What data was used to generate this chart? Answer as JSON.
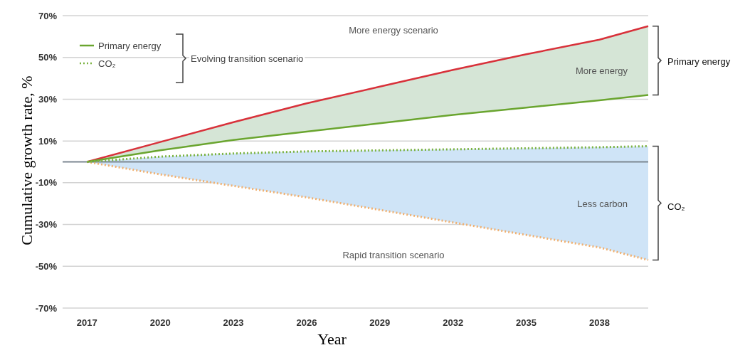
{
  "chart_data": {
    "type": "line",
    "xlabel": "Year",
    "ylabel": "Cumulative growth rate, %",
    "x": [
      2017,
      2020,
      2023,
      2026,
      2029,
      2032,
      2035,
      2038,
      2040
    ],
    "series": [
      {
        "color": "#d8313a",
        "line_style": "solid",
        "values": [
          0,
          9.5,
          19,
          28,
          36,
          44,
          51.5,
          58.5,
          65
        ],
        "lower": [
          0,
          5.5,
          10.5,
          14.5,
          18.5,
          22.5,
          26,
          29.5,
          32
        ],
        "upper": [
          0,
          9.5,
          19,
          28,
          36,
          44,
          51.5,
          58.5,
          65
        ]
      },
      {
        "color": "#f0b070",
        "line_style": "dotted",
        "values": [
          0,
          -6,
          -11.5,
          -17,
          -23,
          -29,
          -35,
          -41,
          -47
        ],
        "lower": [
          0,
          -6,
          -11.5,
          -17,
          -23,
          -29,
          -35,
          -41,
          -47
        ],
        "upper": [
          0,
          2.5,
          4,
          5,
          5.5,
          6,
          6.5,
          7,
          7.5
        ]
      },
      {
        "name": "Primary energy",
        "color": "#6aa52f",
        "line_style": "solid",
        "values": [
          0,
          5.5,
          10.5,
          14.5,
          18.5,
          22.5,
          26,
          29.5,
          32
        ]
      },
      {
        "name": "CO₂",
        "color": "#7cb342",
        "line_style": "dotted",
        "values": [
          0,
          2.5,
          4,
          5,
          5.5,
          6,
          6.5,
          7,
          7.5
        ]
      }
    ],
    "xlim": [
      2016,
      2040
    ],
    "xticks": [
      2017,
      2020,
      2023,
      2026,
      2029,
      2032,
      2035,
      2038
    ],
    "ylim": [
      -70,
      70
    ],
    "yticks": [
      {
        "value": -70,
        "label": "-70%"
      },
      {
        "value": -50,
        "label": "-50%"
      },
      {
        "value": -30,
        "label": "-30%"
      },
      {
        "value": -10,
        "label": "-10%"
      },
      {
        "value": 10,
        "label": "10%"
      },
      {
        "value": 30,
        "label": "30%"
      },
      {
        "value": 50,
        "label": "50%"
      },
      {
        "value": 70,
        "label": "70%"
      }
    ],
    "grid": "y",
    "legend": "top left",
    "ref_lines": [
      {
        "axis": "y",
        "value": 0,
        "color": "#7d8791"
      }
    ],
    "annotations": [
      "Evolving transition scenario",
      "More energy scenario",
      "More energy",
      "Primary energy",
      "Less carbon",
      "Rapid transition scenario",
      "CO₂"
    ]
  }
}
